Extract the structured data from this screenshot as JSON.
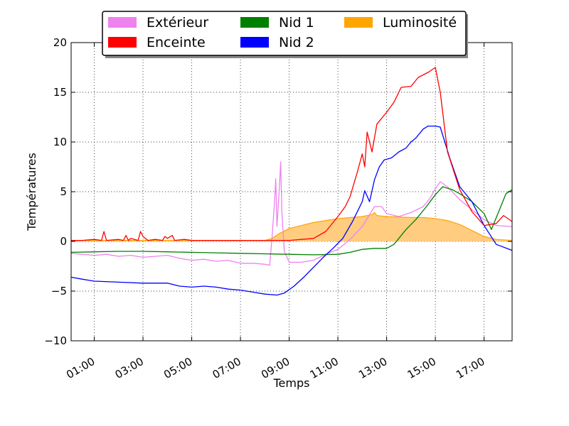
{
  "chart_data": {
    "type": "line",
    "title": "",
    "xlabel": "Temps",
    "ylabel": "Températures",
    "ylim": [
      -10,
      20
    ],
    "xlim": [
      0.05,
      18.15
    ],
    "x_unit": "hours",
    "grid": true,
    "grid_style": "dotted",
    "legend_position": "top-center",
    "yticks": [
      -10,
      -5,
      0,
      5,
      10,
      15,
      20
    ],
    "ytick_labels": [
      "−10",
      "−5",
      "0",
      "5",
      "10",
      "15",
      "20"
    ],
    "xticks": [
      1,
      3,
      5,
      7,
      9,
      11,
      13,
      15,
      17
    ],
    "xtick_labels": [
      "01:00",
      "03:00",
      "05:00",
      "07:00",
      "09:00",
      "11:00",
      "13:00",
      "15:00",
      "17:00"
    ],
    "legend": [
      {
        "label": "Extérieur",
        "color": "#ee82ee"
      },
      {
        "label": "Enceinte",
        "color": "#ff0000"
      },
      {
        "label": "Nid 1",
        "color": "#008000"
      },
      {
        "label": "Nid 2",
        "color": "#0000ff"
      },
      {
        "label": "Luminosité",
        "color": "#ffa500"
      }
    ],
    "series": [
      {
        "name": "Luminosité",
        "type": "area",
        "color": "#ffa500",
        "fill": "#ffcc80",
        "points": [
          [
            0.05,
            0.1
          ],
          [
            8.0,
            0.1
          ],
          [
            8.3,
            0.3
          ],
          [
            8.6,
            0.8
          ],
          [
            9.0,
            1.3
          ],
          [
            9.5,
            1.6
          ],
          [
            10.0,
            1.9
          ],
          [
            10.5,
            2.1
          ],
          [
            11.0,
            2.3
          ],
          [
            11.5,
            2.4
          ],
          [
            12.0,
            2.5
          ],
          [
            12.4,
            2.7
          ],
          [
            12.5,
            2.9
          ],
          [
            12.6,
            2.6
          ],
          [
            13.0,
            2.5
          ],
          [
            14.0,
            2.4
          ],
          [
            14.5,
            2.4
          ],
          [
            15.0,
            2.3
          ],
          [
            15.5,
            2.1
          ],
          [
            16.0,
            1.7
          ],
          [
            16.5,
            1.1
          ],
          [
            17.0,
            0.5
          ],
          [
            17.5,
            0.2
          ],
          [
            18.15,
            0.1
          ]
        ]
      },
      {
        "name": "Extérieur",
        "type": "line",
        "color": "#ee82ee",
        "points": [
          [
            0.05,
            -1.2
          ],
          [
            0.5,
            -1.3
          ],
          [
            1.0,
            -1.4
          ],
          [
            1.5,
            -1.3
          ],
          [
            2.0,
            -1.5
          ],
          [
            2.5,
            -1.4
          ],
          [
            3.0,
            -1.6
          ],
          [
            3.5,
            -1.5
          ],
          [
            4.0,
            -1.4
          ],
          [
            4.5,
            -1.7
          ],
          [
            5.0,
            -1.9
          ],
          [
            5.5,
            -1.8
          ],
          [
            6.0,
            -2.0
          ],
          [
            6.5,
            -1.9
          ],
          [
            7.0,
            -2.2
          ],
          [
            7.5,
            -2.2
          ],
          [
            8.0,
            -2.3
          ],
          [
            8.2,
            -2.4
          ],
          [
            8.3,
            0.5
          ],
          [
            8.4,
            4.0
          ],
          [
            8.45,
            6.3
          ],
          [
            8.5,
            1.5
          ],
          [
            8.6,
            5.5
          ],
          [
            8.65,
            8.0
          ],
          [
            8.7,
            3.0
          ],
          [
            8.8,
            -1.0
          ],
          [
            9.0,
            -2.1
          ],
          [
            9.5,
            -2.1
          ],
          [
            10.0,
            -1.9
          ],
          [
            10.5,
            -1.3
          ],
          [
            11.0,
            -0.8
          ],
          [
            11.5,
            0.2
          ],
          [
            12.0,
            1.5
          ],
          [
            12.5,
            3.5
          ],
          [
            12.8,
            3.5
          ],
          [
            13.0,
            2.8
          ],
          [
            13.5,
            2.5
          ],
          [
            14.0,
            2.9
          ],
          [
            14.5,
            3.5
          ],
          [
            14.8,
            4.4
          ],
          [
            15.0,
            5.3
          ],
          [
            15.2,
            6.0
          ],
          [
            15.5,
            5.5
          ],
          [
            16.0,
            4.2
          ],
          [
            16.5,
            3.2
          ],
          [
            17.0,
            2.2
          ],
          [
            17.5,
            1.6
          ],
          [
            18.15,
            1.5
          ]
        ]
      },
      {
        "name": "Nid 1",
        "type": "line",
        "color": "#008000",
        "points": [
          [
            0.05,
            -1.1
          ],
          [
            1.0,
            -1.05
          ],
          [
            2.0,
            -1.0
          ],
          [
            3.0,
            -1.0
          ],
          [
            4.0,
            -1.05
          ],
          [
            5.0,
            -1.1
          ],
          [
            6.0,
            -1.15
          ],
          [
            7.0,
            -1.2
          ],
          [
            8.0,
            -1.25
          ],
          [
            9.0,
            -1.3
          ],
          [
            10.0,
            -1.35
          ],
          [
            11.0,
            -1.3
          ],
          [
            11.5,
            -1.1
          ],
          [
            12.0,
            -0.8
          ],
          [
            12.5,
            -0.7
          ],
          [
            13.0,
            -0.7
          ],
          [
            13.3,
            -0.3
          ],
          [
            13.5,
            0.3
          ],
          [
            13.8,
            1.2
          ],
          [
            14.2,
            2.2
          ],
          [
            14.6,
            3.4
          ],
          [
            15.0,
            4.7
          ],
          [
            15.3,
            5.5
          ],
          [
            15.7,
            5.2
          ],
          [
            16.0,
            4.8
          ],
          [
            16.5,
            4.0
          ],
          [
            17.0,
            2.8
          ],
          [
            17.3,
            1.2
          ],
          [
            17.6,
            3.0
          ],
          [
            17.9,
            4.8
          ],
          [
            18.15,
            5.2
          ]
        ]
      },
      {
        "name": "Nid 2",
        "type": "line",
        "color": "#0000ff",
        "points": [
          [
            0.05,
            -3.6
          ],
          [
            0.5,
            -3.8
          ],
          [
            1.0,
            -4.0
          ],
          [
            2.0,
            -4.1
          ],
          [
            3.0,
            -4.2
          ],
          [
            4.0,
            -4.2
          ],
          [
            4.5,
            -4.5
          ],
          [
            5.0,
            -4.6
          ],
          [
            5.5,
            -4.5
          ],
          [
            6.0,
            -4.6
          ],
          [
            6.5,
            -4.8
          ],
          [
            7.0,
            -4.9
          ],
          [
            7.5,
            -5.1
          ],
          [
            8.0,
            -5.3
          ],
          [
            8.5,
            -5.4
          ],
          [
            8.8,
            -5.2
          ],
          [
            9.2,
            -4.5
          ],
          [
            9.6,
            -3.6
          ],
          [
            10.0,
            -2.6
          ],
          [
            10.4,
            -1.6
          ],
          [
            10.8,
            -0.7
          ],
          [
            11.2,
            0.3
          ],
          [
            11.6,
            2.0
          ],
          [
            12.0,
            4.0
          ],
          [
            12.1,
            5.1
          ],
          [
            12.3,
            4.0
          ],
          [
            12.5,
            6.2
          ],
          [
            12.7,
            7.5
          ],
          [
            12.9,
            8.2
          ],
          [
            13.2,
            8.4
          ],
          [
            13.5,
            9.0
          ],
          [
            13.8,
            9.4
          ],
          [
            14.0,
            10.0
          ],
          [
            14.2,
            10.4
          ],
          [
            14.5,
            11.3
          ],
          [
            14.7,
            11.6
          ],
          [
            15.0,
            11.6
          ],
          [
            15.2,
            11.5
          ],
          [
            15.6,
            8.3
          ],
          [
            16.0,
            5.5
          ],
          [
            16.5,
            4.0
          ],
          [
            17.0,
            1.6
          ],
          [
            17.5,
            -0.3
          ],
          [
            18.15,
            -0.9
          ]
        ]
      },
      {
        "name": "Enceinte",
        "type": "line",
        "color": "#ff0000",
        "points": [
          [
            0.05,
            0.1
          ],
          [
            0.5,
            0.1
          ],
          [
            1.0,
            0.2
          ],
          [
            1.3,
            0.1
          ],
          [
            1.4,
            1.0
          ],
          [
            1.5,
            0.1
          ],
          [
            2.0,
            0.2
          ],
          [
            2.2,
            0.1
          ],
          [
            2.3,
            0.6
          ],
          [
            2.4,
            0.1
          ],
          [
            2.5,
            0.3
          ],
          [
            2.8,
            0.1
          ],
          [
            2.9,
            1.0
          ],
          [
            3.0,
            0.5
          ],
          [
            3.2,
            0.1
          ],
          [
            3.5,
            0.2
          ],
          [
            3.8,
            0.1
          ],
          [
            3.9,
            0.5
          ],
          [
            4.0,
            0.3
          ],
          [
            4.2,
            0.6
          ],
          [
            4.3,
            0.1
          ],
          [
            4.7,
            0.2
          ],
          [
            5.0,
            0.1
          ],
          [
            7.0,
            0.1
          ],
          [
            8.0,
            0.1
          ],
          [
            9.0,
            0.1
          ],
          [
            10.0,
            0.3
          ],
          [
            10.5,
            1.0
          ],
          [
            11.0,
            2.5
          ],
          [
            11.3,
            3.5
          ],
          [
            11.5,
            4.5
          ],
          [
            11.8,
            7.0
          ],
          [
            12.0,
            8.8
          ],
          [
            12.1,
            7.5
          ],
          [
            12.2,
            11.0
          ],
          [
            12.4,
            9.0
          ],
          [
            12.6,
            11.8
          ],
          [
            13.0,
            13.0
          ],
          [
            13.3,
            14.0
          ],
          [
            13.6,
            15.5
          ],
          [
            14.0,
            15.6
          ],
          [
            14.3,
            16.5
          ],
          [
            14.7,
            17.0
          ],
          [
            15.0,
            17.5
          ],
          [
            15.2,
            15.0
          ],
          [
            15.5,
            9.0
          ],
          [
            16.0,
            5.2
          ],
          [
            16.5,
            3.0
          ],
          [
            17.0,
            1.6
          ],
          [
            17.5,
            1.8
          ],
          [
            17.8,
            2.6
          ],
          [
            18.15,
            2.0
          ]
        ]
      }
    ]
  }
}
